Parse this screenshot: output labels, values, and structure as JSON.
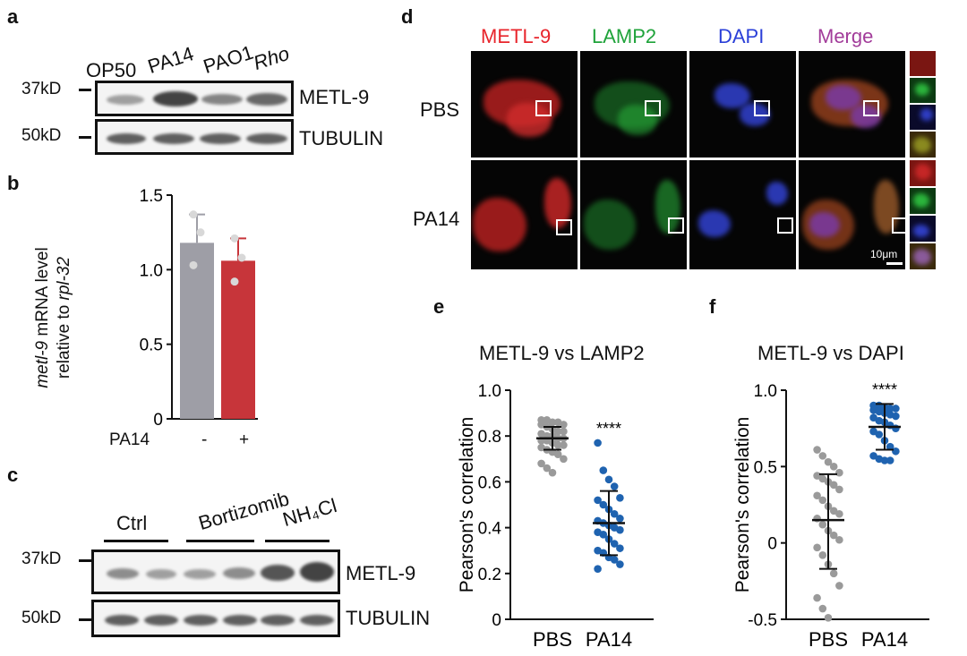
{
  "panel_a": {
    "letter": "a",
    "lanes": [
      "OP50",
      "PA14",
      "PAO1",
      "Rho"
    ],
    "mw": [
      "37kD",
      "50kD"
    ],
    "proteins": [
      "METL-9",
      "TUBULIN"
    ],
    "metl9_band_intensity": [
      0.45,
      0.95,
      0.6,
      0.75
    ],
    "tubulin_band_intensity": [
      0.8,
      0.8,
      0.8,
      0.8
    ]
  },
  "panel_b": {
    "letter": "b",
    "ylabel_part1": "metl-9",
    "ylabel_part2": " mRNA level",
    "ylabel_part3": "relative to ",
    "ylabel_part4": "rpl-32",
    "xrow_label": "PA14",
    "xrow_values": [
      "-",
      "+"
    ]
  },
  "panel_c": {
    "letter": "c",
    "groups": [
      "Ctrl",
      "Bortizomib",
      "NH₄Cl"
    ],
    "mw": [
      "37kD",
      "50kD"
    ],
    "proteins": [
      "METL-9",
      "TUBULIN"
    ],
    "metl9_band_intensity": [
      0.55,
      0.45,
      0.45,
      0.55,
      0.85,
      0.95
    ],
    "tubulin_band_intensity": [
      0.8,
      0.8,
      0.8,
      0.8,
      0.8,
      0.8
    ]
  },
  "panel_d": {
    "letter": "d",
    "columns": [
      "METL-9",
      "LAMP2",
      "DAPI",
      "Merge"
    ],
    "column_colors": [
      "#e8242b",
      "#1fa33a",
      "#2a3fd8",
      "#a23c9a"
    ],
    "rows": [
      "PBS",
      "PA14"
    ],
    "scale_bar": "10μm"
  },
  "panel_e": {
    "letter": "e",
    "title": "METL-9 vs LAMP2",
    "significance": "****"
  },
  "panel_f": {
    "letter": "f",
    "title": "METL-9 vs DAPI",
    "significance": "****"
  },
  "chart_data": [
    {
      "id": "b",
      "type": "bar",
      "categories": [
        "-",
        "+"
      ],
      "values": [
        1.18,
        1.06
      ],
      "errors": [
        0.19,
        0.15
      ],
      "points": [
        [
          1.37,
          1.25,
          1.03
        ],
        [
          1.21,
          1.08,
          0.92
        ]
      ],
      "colors": [
        "#9e9ea6",
        "#c7353a"
      ],
      "ylabel": "metl-9 mRNA level relative to rpl-32",
      "ylim": [
        0,
        1.5
      ],
      "yticks": [
        0,
        0.5,
        1.0,
        1.5
      ],
      "ytick_labels": [
        "0",
        "0.5",
        "1.0",
        "1.5"
      ]
    },
    {
      "id": "e",
      "type": "scatter",
      "title": "METL-9 vs LAMP2",
      "ylabel": "Pearson's correlation",
      "ylim": [
        0,
        1.0
      ],
      "yticks": [
        0,
        0.2,
        0.4,
        0.6,
        0.8,
        1.0
      ],
      "ytick_labels": [
        "0",
        "0.2",
        "0.4",
        "0.6",
        "0.8",
        "1.0"
      ],
      "categories": [
        "PBS",
        "PA14"
      ],
      "series": [
        {
          "name": "PBS",
          "color": "#9a9a9a",
          "mean": 0.79,
          "sd_low": 0.74,
          "sd_high": 0.84,
          "values": [
            0.87,
            0.87,
            0.86,
            0.86,
            0.85,
            0.85,
            0.84,
            0.83,
            0.82,
            0.82,
            0.81,
            0.8,
            0.8,
            0.79,
            0.79,
            0.78,
            0.78,
            0.77,
            0.76,
            0.76,
            0.75,
            0.74,
            0.73,
            0.72,
            0.7,
            0.68,
            0.66,
            0.64
          ]
        },
        {
          "name": "PA14",
          "color": "#1f63b0",
          "mean": 0.42,
          "sd_low": 0.28,
          "sd_high": 0.56,
          "values": [
            0.77,
            0.65,
            0.61,
            0.58,
            0.53,
            0.52,
            0.5,
            0.48,
            0.46,
            0.44,
            0.43,
            0.42,
            0.41,
            0.4,
            0.39,
            0.38,
            0.37,
            0.35,
            0.33,
            0.31,
            0.3,
            0.29,
            0.27,
            0.26,
            0.24,
            0.22
          ]
        }
      ]
    },
    {
      "id": "f",
      "type": "scatter",
      "title": "METL-9 vs DAPI",
      "ylabel": "Pearson's correlation",
      "ylim": [
        -0.5,
        1.0
      ],
      "yticks": [
        -0.5,
        0,
        0.5,
        1.0
      ],
      "ytick_labels": [
        "-0.5",
        "0",
        "0.5",
        "1.0"
      ],
      "categories": [
        "PBS",
        "PA14"
      ],
      "series": [
        {
          "name": "PBS",
          "color": "#9a9a9a",
          "mean": 0.15,
          "sd_low": -0.17,
          "sd_high": 0.45,
          "values": [
            0.61,
            0.57,
            0.53,
            0.5,
            0.46,
            0.44,
            0.42,
            0.4,
            0.38,
            0.35,
            0.31,
            0.28,
            0.24,
            0.21,
            0.19,
            0.16,
            0.12,
            0.08,
            0.05,
            0.02,
            -0.03,
            -0.08,
            -0.14,
            -0.2,
            -0.28,
            -0.36,
            -0.43,
            -0.49
          ]
        },
        {
          "name": "PA14",
          "color": "#1f63b0",
          "mean": 0.76,
          "sd_low": 0.61,
          "sd_high": 0.91,
          "values": [
            0.9,
            0.9,
            0.89,
            0.88,
            0.88,
            0.87,
            0.86,
            0.85,
            0.84,
            0.83,
            0.82,
            0.8,
            0.79,
            0.77,
            0.75,
            0.73,
            0.71,
            0.67,
            0.63,
            0.6,
            0.57,
            0.55,
            0.54,
            0.54
          ]
        }
      ]
    }
  ]
}
